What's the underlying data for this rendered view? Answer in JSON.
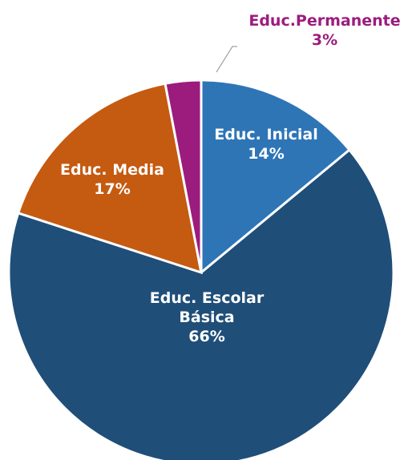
{
  "chart_data": {
    "type": "pie",
    "title": "",
    "slices": [
      {
        "label": "Educ. Inicial",
        "label_lines": [
          "Educ. Inicial"
        ],
        "pct_label": "14%",
        "value": 14,
        "color": "#2E75B6",
        "label_position": "inside"
      },
      {
        "label": "Educ. Escolar Básica",
        "label_lines": [
          "Educ. Escolar",
          "Básica"
        ],
        "pct_label": "66%",
        "value": 66,
        "color": "#1F4E79",
        "label_position": "inside"
      },
      {
        "label": "Educ. Media",
        "label_lines": [
          "Educ. Media"
        ],
        "pct_label": "17%",
        "value": 17,
        "color": "#C55A11",
        "label_position": "inside"
      },
      {
        "label": "Educ.Permanente",
        "label_lines": [
          "Educ.Permanente"
        ],
        "pct_label": "3%",
        "value": 3,
        "color": "#9C1C7E",
        "label_position": "outside-top-right"
      }
    ],
    "start_angle": "12 o'clock",
    "direction": "clockwise",
    "legend": "none"
  }
}
